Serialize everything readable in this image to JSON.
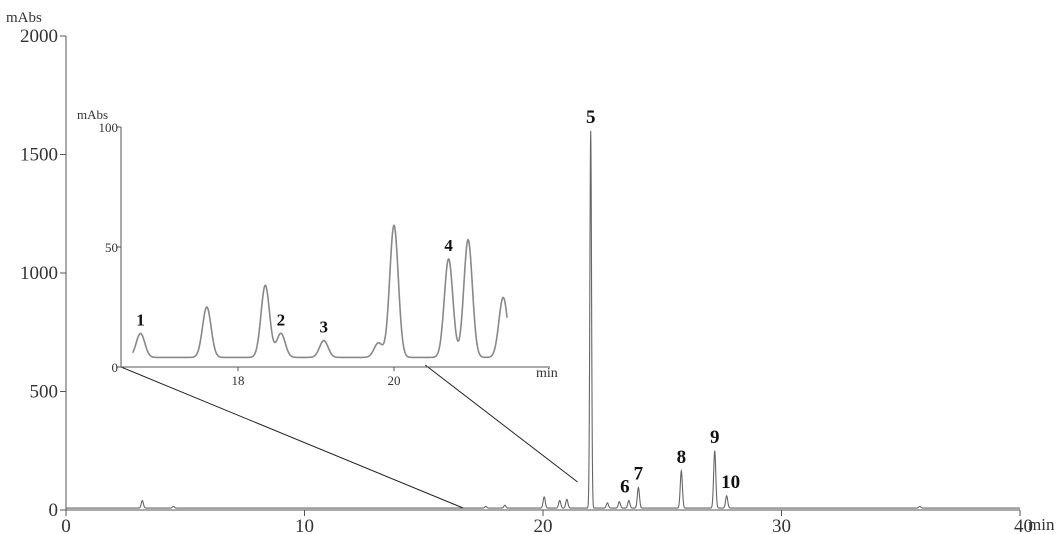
{
  "chart_data": [
    {
      "type": "line",
      "title": "",
      "ylabel": "mAbs",
      "xlabel": "",
      "x_unit": "min",
      "xlim": [
        0,
        40
      ],
      "ylim": [
        0,
        2000
      ],
      "x_ticks": [
        "0",
        "10",
        "20",
        "30",
        "40"
      ],
      "y_ticks": [
        "0",
        "500",
        "1000",
        "1500",
        "2000"
      ],
      "grid": false,
      "color": "#666666",
      "baseline": 8,
      "peaks": [
        {
          "x": 3.2,
          "y": 40
        },
        {
          "x": 4.5,
          "y": 15
        },
        {
          "x": 17.6,
          "y": 15
        },
        {
          "x": 18.4,
          "y": 20
        },
        {
          "x": 20.05,
          "y": 55
        },
        {
          "x": 20.7,
          "y": 40
        },
        {
          "x": 21.0,
          "y": 45
        },
        {
          "x": 22.0,
          "y": 1600
        },
        {
          "x": 22.7,
          "y": 30
        },
        {
          "x": 23.2,
          "y": 35
        },
        {
          "x": 23.6,
          "y": 40
        },
        {
          "x": 24.0,
          "y": 95
        },
        {
          "x": 25.8,
          "y": 165
        },
        {
          "x": 27.2,
          "y": 250
        },
        {
          "x": 27.7,
          "y": 60
        },
        {
          "x": 35.8,
          "y": 15
        }
      ],
      "peak_labels": [
        {
          "label": "5",
          "x": 22.0,
          "y": 1600
        },
        {
          "label": "6",
          "x": 23.6,
          "y": 40
        },
        {
          "label": "7",
          "x": 24.0,
          "y": 95
        },
        {
          "label": "8",
          "x": 25.8,
          "y": 165
        },
        {
          "label": "9",
          "x": 27.2,
          "y": 250
        },
        {
          "label": "10",
          "x": 27.7,
          "y": 60
        }
      ]
    },
    {
      "type": "line",
      "title": "",
      "ylabel": "mAbs",
      "xlabel": "",
      "x_unit": "min",
      "xlim": [
        16.5,
        22.0
      ],
      "ylim": [
        0,
        100
      ],
      "x_ticks": [
        "18",
        "20"
      ],
      "y_ticks": [
        "0",
        "50",
        "100"
      ],
      "grid": false,
      "color": "#888888",
      "zoom_range": [
        16.65,
        21.45
      ],
      "baseline": 4,
      "peaks": [
        {
          "x": 16.75,
          "y": 14
        },
        {
          "x": 17.6,
          "y": 25
        },
        {
          "x": 18.35,
          "y": 34
        },
        {
          "x": 18.55,
          "y": 14
        },
        {
          "x": 19.1,
          "y": 11
        },
        {
          "x": 19.8,
          "y": 10
        },
        {
          "x": 20.0,
          "y": 59
        },
        {
          "x": 20.7,
          "y": 45
        },
        {
          "x": 20.95,
          "y": 53
        },
        {
          "x": 21.4,
          "y": 29
        }
      ],
      "peak_labels": [
        {
          "label": "1",
          "x": 16.75,
          "y": 14
        },
        {
          "label": "2",
          "x": 18.55,
          "y": 14
        },
        {
          "label": "3",
          "x": 19.1,
          "y": 11
        },
        {
          "label": "4",
          "x": 20.7,
          "y": 45
        }
      ]
    }
  ]
}
